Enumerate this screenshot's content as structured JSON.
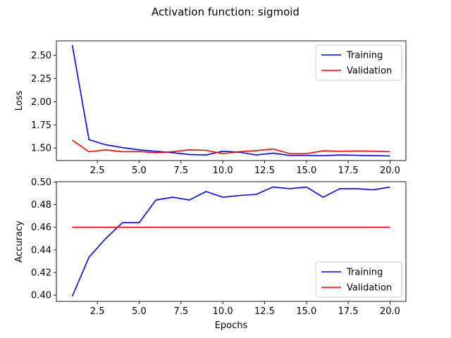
{
  "figure": {
    "title": "Activation function: sigmoid"
  },
  "chart_data": [
    {
      "type": "line",
      "xlabel": "",
      "ylabel": "Loss",
      "xlim": [
        0.05,
        20.95
      ],
      "ylim": [
        1.365,
        2.655
      ],
      "xticks": [
        2.5,
        5.0,
        7.5,
        10.0,
        12.5,
        15.0,
        17.5,
        20.0
      ],
      "xtick_labels": [
        "2.5",
        "5.0",
        "7.5",
        "10.0",
        "12.5",
        "15.0",
        "17.5",
        "20.0"
      ],
      "yticks": [
        1.5,
        1.75,
        2.0,
        2.25,
        2.5
      ],
      "ytick_labels": [
        "1.50",
        "1.75",
        "2.00",
        "2.25",
        "2.50"
      ],
      "grid": false,
      "legend": "upper-right",
      "x": [
        1,
        2,
        3,
        4,
        5,
        6,
        7,
        8,
        9,
        10,
        11,
        12,
        13,
        14,
        15,
        16,
        17,
        18,
        19,
        20
      ],
      "series": [
        {
          "name": "Training",
          "color": "#0000ff",
          "values": [
            2.61,
            1.59,
            1.535,
            1.505,
            1.48,
            1.465,
            1.45,
            1.43,
            1.425,
            1.465,
            1.455,
            1.425,
            1.445,
            1.42,
            1.42,
            1.418,
            1.425,
            1.422,
            1.418,
            1.415
          ]
        },
        {
          "name": "Validation",
          "color": "#ff0000",
          "values": [
            1.585,
            1.46,
            1.48,
            1.46,
            1.462,
            1.45,
            1.46,
            1.48,
            1.475,
            1.44,
            1.46,
            1.472,
            1.49,
            1.44,
            1.44,
            1.47,
            1.465,
            1.468,
            1.466,
            1.46
          ]
        }
      ]
    },
    {
      "type": "line",
      "xlabel": "Epochs",
      "ylabel": "Accuracy",
      "xlim": [
        0.05,
        20.95
      ],
      "ylim": [
        0.3945,
        0.5002
      ],
      "xticks": [
        2.5,
        5.0,
        7.5,
        10.0,
        12.5,
        15.0,
        17.5,
        20.0
      ],
      "xtick_labels": [
        "2.5",
        "5.0",
        "7.5",
        "10.0",
        "12.5",
        "15.0",
        "17.5",
        "20.0"
      ],
      "yticks": [
        0.4,
        0.42,
        0.44,
        0.46,
        0.48,
        0.5
      ],
      "ytick_labels": [
        "0.40",
        "0.42",
        "0.44",
        "0.46",
        "0.48",
        "0.50"
      ],
      "grid": false,
      "legend": "lower-right",
      "x": [
        1,
        2,
        3,
        4,
        5,
        6,
        7,
        8,
        9,
        10,
        11,
        12,
        13,
        14,
        15,
        16,
        17,
        18,
        19,
        20
      ],
      "series": [
        {
          "name": "Training",
          "color": "#0000ff",
          "values": [
            0.399,
            0.4335,
            0.45,
            0.464,
            0.464,
            0.484,
            0.4865,
            0.484,
            0.4915,
            0.4865,
            0.488,
            0.489,
            0.4955,
            0.494,
            0.4955,
            0.4865,
            0.494,
            0.494,
            0.493,
            0.4955
          ]
        },
        {
          "name": "Validation",
          "color": "#ff0000",
          "values": [
            0.46,
            0.46,
            0.46,
            0.46,
            0.46,
            0.46,
            0.46,
            0.46,
            0.46,
            0.46,
            0.46,
            0.46,
            0.46,
            0.46,
            0.46,
            0.46,
            0.46,
            0.46,
            0.46,
            0.46
          ]
        }
      ]
    }
  ]
}
